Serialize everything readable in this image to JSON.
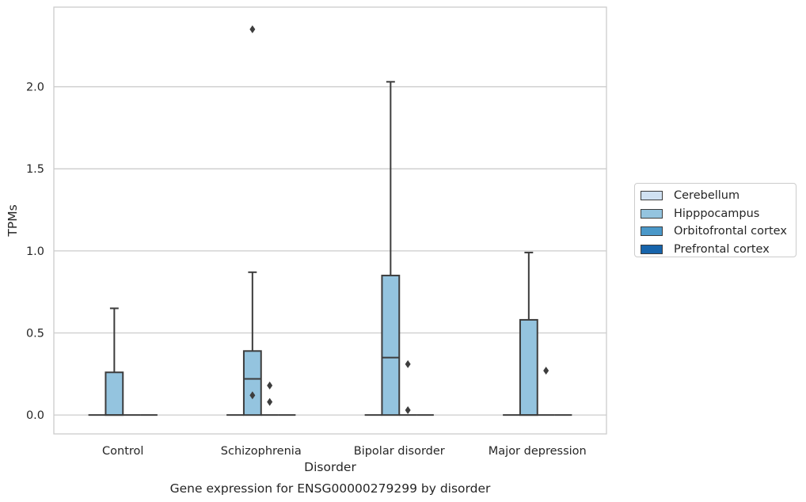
{
  "chart_data": {
    "type": "boxplot",
    "title": "Gene expression for ENSG00000279299 by disorder",
    "xlabel": "Disorder",
    "ylabel": "TPMs",
    "ylim": [
      -0.115,
      2.485
    ],
    "yticks": [
      "0.0",
      "0.5",
      "1.0",
      "1.5",
      "2.0"
    ],
    "ytick_values": [
      0.0,
      0.5,
      1.0,
      1.5,
      2.0
    ],
    "grid": true,
    "legend_position": "right",
    "categories": [
      "Control",
      "Schizophrenia",
      "Bipolar disorder",
      "Major depression"
    ],
    "series": [
      {
        "name": "Cerebellum",
        "color": "#d0e1f2",
        "boxes": [
          {
            "category": "Control",
            "min": 0,
            "q1": 0,
            "median": 0,
            "q3": 0,
            "max": 0,
            "outliers": []
          },
          {
            "category": "Schizophrenia",
            "min": 0,
            "q1": 0,
            "median": 0,
            "q3": 0,
            "max": 0,
            "outliers": []
          },
          {
            "category": "Bipolar disorder",
            "min": 0,
            "q1": 0,
            "median": 0,
            "q3": 0,
            "max": 0,
            "outliers": []
          },
          {
            "category": "Major depression",
            "min": 0,
            "q1": 0,
            "median": 0,
            "q3": 0,
            "max": 0,
            "outliers": []
          }
        ]
      },
      {
        "name": "Hipppocampus",
        "color": "#94c4df",
        "boxes": [
          {
            "category": "Control",
            "min": 0,
            "q1": 0,
            "median": 0,
            "q3": 0.26,
            "max": 0.65,
            "outliers": []
          },
          {
            "category": "Schizophrenia",
            "min": 0,
            "q1": 0,
            "median": 0.22,
            "q3": 0.39,
            "max": 0.87,
            "outliers": [
              0.12,
              2.35
            ]
          },
          {
            "category": "Bipolar disorder",
            "min": 0,
            "q1": 0,
            "median": 0.35,
            "q3": 0.85,
            "max": 2.03,
            "outliers": []
          },
          {
            "category": "Major depression",
            "min": 0,
            "q1": 0,
            "median": 0,
            "q3": 0.58,
            "max": 0.99,
            "outliers": []
          }
        ]
      },
      {
        "name": "Orbitofrontal cortex",
        "color": "#4a98c9",
        "boxes": [
          {
            "category": "Control",
            "min": 0,
            "q1": 0,
            "median": 0,
            "q3": 0,
            "max": 0,
            "outliers": []
          },
          {
            "category": "Schizophrenia",
            "min": 0,
            "q1": 0,
            "median": 0,
            "q3": 0,
            "max": 0,
            "outliers": [
              0.08,
              0.18
            ]
          },
          {
            "category": "Bipolar disorder",
            "min": 0,
            "q1": 0,
            "median": 0,
            "q3": 0,
            "max": 0,
            "outliers": [
              0.03,
              0.31
            ]
          },
          {
            "category": "Major depression",
            "min": 0,
            "q1": 0,
            "median": 0,
            "q3": 0,
            "max": 0,
            "outliers": [
              0.27
            ]
          }
        ]
      },
      {
        "name": "Prefrontal cortex",
        "color": "#1764ab",
        "boxes": [
          {
            "category": "Control",
            "min": 0,
            "q1": 0,
            "median": 0,
            "q3": 0,
            "max": 0,
            "outliers": []
          },
          {
            "category": "Schizophrenia",
            "min": 0,
            "q1": 0,
            "median": 0,
            "q3": 0,
            "max": 0,
            "outliers": []
          },
          {
            "category": "Bipolar disorder",
            "min": 0,
            "q1": 0,
            "median": 0,
            "q3": 0,
            "max": 0,
            "outliers": []
          },
          {
            "category": "Major depression",
            "min": 0,
            "q1": 0,
            "median": 0,
            "q3": 0,
            "max": 0,
            "outliers": []
          }
        ]
      }
    ]
  }
}
